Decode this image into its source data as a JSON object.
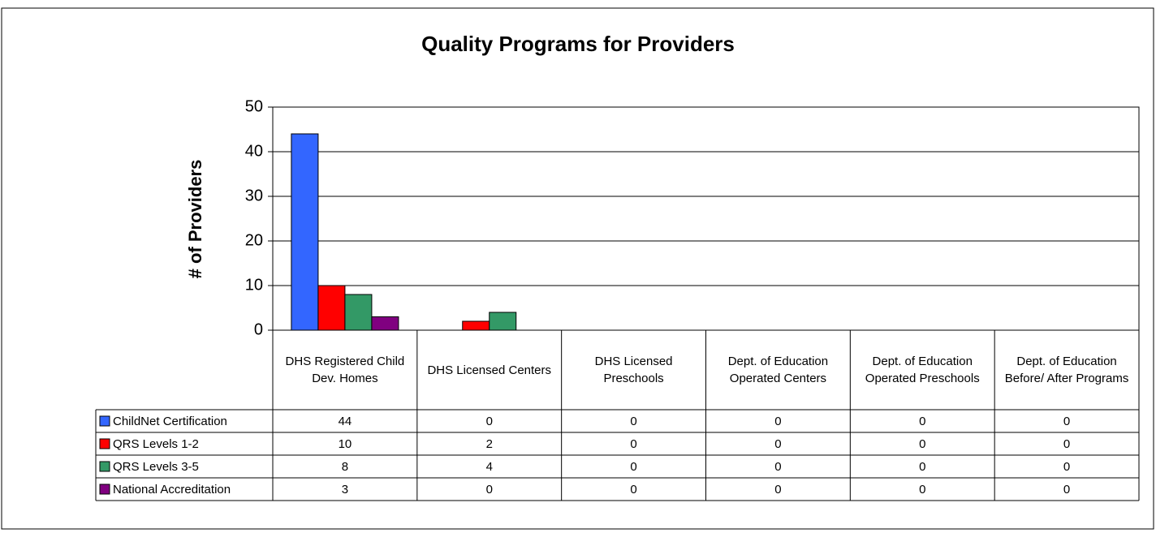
{
  "chart_data": {
    "type": "bar",
    "title": "Quality Programs for Providers",
    "y_label": "# of Providers",
    "categories": [
      "DHS Registered Child Dev. Homes",
      "DHS Licensed Centers",
      "DHS Licensed Preschools",
      "Dept. of Education Operated Centers",
      "Dept. of Education Operated Preschools",
      "Dept. of Education Before/ After Programs"
    ],
    "series": [
      {
        "name": "ChildNet Certification",
        "color": "#3366ff",
        "values": [
          44,
          0,
          0,
          0,
          0,
          0
        ]
      },
      {
        "name": "QRS Levels 1-2",
        "color": "#ff0000",
        "values": [
          10,
          2,
          0,
          0,
          0,
          0
        ]
      },
      {
        "name": "QRS Levels 3-5",
        "color": "#339966",
        "values": [
          8,
          4,
          0,
          0,
          0,
          0
        ]
      },
      {
        "name": "National Accreditation",
        "color": "#800080",
        "values": [
          3,
          0,
          0,
          0,
          0,
          0
        ]
      }
    ],
    "ylim": [
      0,
      50
    ],
    "yticks": [
      0,
      10,
      20,
      30,
      40,
      50
    ],
    "grid": true,
    "data_table": true
  }
}
